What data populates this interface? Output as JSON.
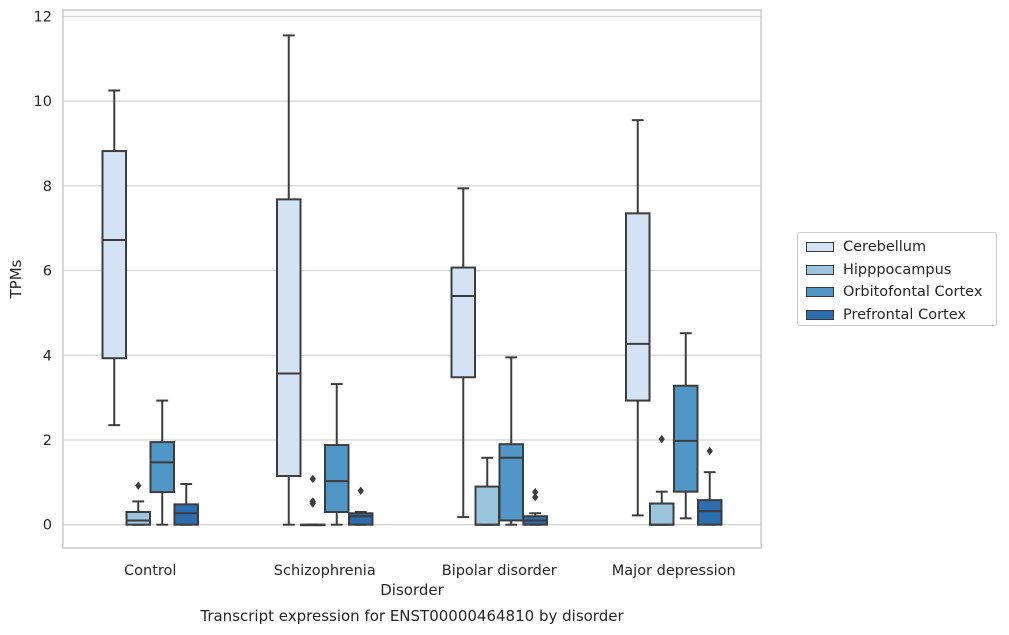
{
  "chart_data": {
    "type": "box",
    "xlabel": "Disorder",
    "ylabel": "TPMs",
    "caption": "Transcript expression for ENST00000464810 by disorder",
    "ylim": [
      -0.55,
      12.15
    ],
    "yticks": [
      "0",
      "2",
      "4",
      "6",
      "8",
      "10",
      "12"
    ],
    "categories": [
      "Control",
      "Schizophrenia",
      "Bipolar disorder",
      "Major depression"
    ],
    "grid": "horizontal",
    "legend_position": "right",
    "series": [
      {
        "name": "Cerebellum",
        "color": "#d4e3f3",
        "boxes": [
          {
            "whislo": 2.35,
            "q1": 3.93,
            "med": 6.72,
            "q3": 8.82,
            "whishi": 10.25,
            "fliers": []
          },
          {
            "whislo": 0.0,
            "q1": 1.15,
            "med": 3.57,
            "q3": 7.68,
            "whishi": 11.55,
            "fliers": []
          },
          {
            "whislo": 0.18,
            "q1": 3.48,
            "med": 5.4,
            "q3": 6.07,
            "whishi": 7.94,
            "fliers": []
          },
          {
            "whislo": 0.22,
            "q1": 2.93,
            "med": 4.27,
            "q3": 7.35,
            "whishi": 9.55,
            "fliers": []
          }
        ]
      },
      {
        "name": "Hipppocampus",
        "color": "#9bc4de",
        "boxes": [
          {
            "whislo": 0.0,
            "q1": 0.0,
            "med": 0.1,
            "q3": 0.3,
            "whishi": 0.55,
            "fliers": [
              0.92
            ]
          },
          {
            "whislo": 0.0,
            "q1": 0.0,
            "med": 0.0,
            "q3": 0.0,
            "whishi": 0.0,
            "fliers": [
              0.5,
              0.55,
              1.08
            ]
          },
          {
            "whislo": 0.0,
            "q1": 0.0,
            "med": 0.0,
            "q3": 0.9,
            "whishi": 1.58,
            "fliers": []
          },
          {
            "whislo": 0.0,
            "q1": 0.0,
            "med": 0.0,
            "q3": 0.5,
            "whishi": 0.78,
            "fliers": [
              2.02
            ]
          }
        ]
      },
      {
        "name": "Orbitofontal Cortex",
        "color": "#5097c7",
        "boxes": [
          {
            "whislo": 0.0,
            "q1": 0.77,
            "med": 1.47,
            "q3": 1.95,
            "whishi": 2.93,
            "fliers": []
          },
          {
            "whislo": 0.0,
            "q1": 0.3,
            "med": 1.03,
            "q3": 1.88,
            "whishi": 3.32,
            "fliers": []
          },
          {
            "whislo": 0.0,
            "q1": 0.1,
            "med": 1.58,
            "q3": 1.9,
            "whishi": 3.95,
            "fliers": []
          },
          {
            "whislo": 0.15,
            "q1": 0.78,
            "med": 1.98,
            "q3": 3.28,
            "whishi": 4.52,
            "fliers": []
          }
        ]
      },
      {
        "name": "Prefrontal Cortex",
        "color": "#2c6daf",
        "boxes": [
          {
            "whislo": 0.0,
            "q1": 0.0,
            "med": 0.27,
            "q3": 0.48,
            "whishi": 0.96,
            "fliers": []
          },
          {
            "whislo": 0.0,
            "q1": 0.0,
            "med": 0.2,
            "q3": 0.27,
            "whishi": 0.3,
            "fliers": [
              0.8
            ]
          },
          {
            "whislo": 0.0,
            "q1": 0.0,
            "med": 0.1,
            "q3": 0.2,
            "whishi": 0.27,
            "fliers": [
              0.65,
              0.77
            ]
          },
          {
            "whislo": 0.0,
            "q1": 0.0,
            "med": 0.32,
            "q3": 0.58,
            "whishi": 1.24,
            "fliers": [
              1.74
            ]
          }
        ]
      }
    ]
  }
}
